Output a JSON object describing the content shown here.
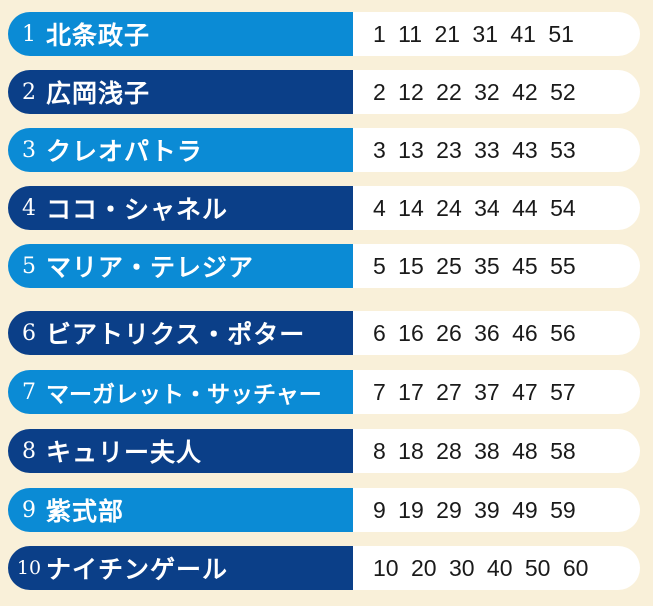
{
  "colors": {
    "light": "#0b8bd5",
    "dark": "#0b3f88",
    "background": "#f9f0d9"
  },
  "rows": [
    {
      "num": "1",
      "name": "北条政子",
      "numbers": "1 11 21 31 41 51"
    },
    {
      "num": "2",
      "name": "広岡浅子",
      "numbers": "2 12 22 32 42 52"
    },
    {
      "num": "3",
      "name": "クレオパトラ",
      "numbers": "3 13 23 33 43 53"
    },
    {
      "num": "4",
      "name": "ココ・シャネル",
      "numbers": "4 14 24 34 44 54"
    },
    {
      "num": "5",
      "name": "マリア・テレジア",
      "numbers": "5 15 25 35 45 55"
    },
    {
      "num": "6",
      "name": "ビアトリクス・ポター",
      "numbers": "6 16 26 36 46 56"
    },
    {
      "num": "7",
      "name": "マーガレット・サッチャー",
      "numbers": "7 17 27 37 47 57"
    },
    {
      "num": "8",
      "name": "キュリー夫人",
      "numbers": "8 18 28 38 48 58"
    },
    {
      "num": "9",
      "name": "紫式部",
      "numbers": "9 19 29 39 49 59"
    },
    {
      "num": "10",
      "name": "ナイチンゲール",
      "numbers": "10 20 30 40 50 60"
    }
  ]
}
